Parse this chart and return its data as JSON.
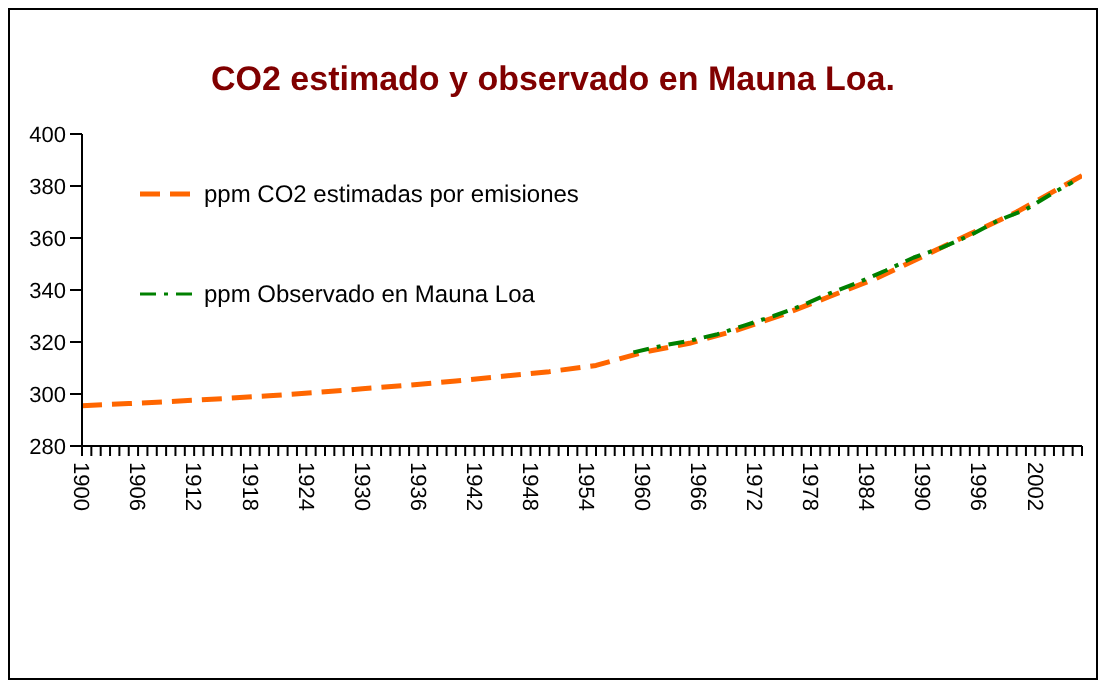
{
  "chart_data": {
    "type": "line",
    "title": "CO2 estimado y observado en Mauna Loa.",
    "xlim": [
      1900,
      2007
    ],
    "ylim": [
      280,
      400
    ],
    "yticks": [
      280,
      300,
      320,
      340,
      360,
      380,
      400
    ],
    "xticks": [
      1900,
      {
        "value": 1901,
        "label": null
      },
      {
        "value": 1902,
        "label": null
      },
      {
        "value": 1903,
        "label": null
      },
      {
        "value": 1904,
        "label": null
      },
      {
        "value": 1905,
        "label": null
      },
      1906,
      {
        "value": 1907,
        "label": null
      },
      {
        "value": 1908,
        "label": null
      },
      {
        "value": 1909,
        "label": null
      },
      {
        "value": 1910,
        "label": null
      },
      {
        "value": 1911,
        "label": null
      },
      1912,
      {
        "value": 1913,
        "label": null
      },
      {
        "value": 1914,
        "label": null
      },
      {
        "value": 1915,
        "label": null
      },
      {
        "value": 1916,
        "label": null
      },
      {
        "value": 1917,
        "label": null
      },
      1918,
      {
        "value": 1919,
        "label": null
      },
      {
        "value": 1920,
        "label": null
      },
      {
        "value": 1921,
        "label": null
      },
      {
        "value": 1922,
        "label": null
      },
      {
        "value": 1923,
        "label": null
      },
      1924,
      {
        "value": 1925,
        "label": null
      },
      {
        "value": 1926,
        "label": null
      },
      {
        "value": 1927,
        "label": null
      },
      {
        "value": 1928,
        "label": null
      },
      {
        "value": 1929,
        "label": null
      },
      1930,
      {
        "value": 1931,
        "label": null
      },
      {
        "value": 1932,
        "label": null
      },
      {
        "value": 1933,
        "label": null
      },
      {
        "value": 1934,
        "label": null
      },
      {
        "value": 1935,
        "label": null
      },
      1936,
      {
        "value": 1937,
        "label": null
      },
      {
        "value": 1938,
        "label": null
      },
      {
        "value": 1939,
        "label": null
      },
      {
        "value": 1940,
        "label": null
      },
      {
        "value": 1941,
        "label": null
      },
      1942,
      {
        "value": 1943,
        "label": null
      },
      {
        "value": 1944,
        "label": null
      },
      {
        "value": 1945,
        "label": null
      },
      {
        "value": 1946,
        "label": null
      },
      {
        "value": 1947,
        "label": null
      },
      1948,
      {
        "value": 1949,
        "label": null
      },
      {
        "value": 1950,
        "label": null
      },
      {
        "value": 1951,
        "label": null
      },
      {
        "value": 1952,
        "label": null
      },
      {
        "value": 1953,
        "label": null
      },
      1954,
      {
        "value": 1955,
        "label": null
      },
      {
        "value": 1956,
        "label": null
      },
      {
        "value": 1957,
        "label": null
      },
      {
        "value": 1958,
        "label": null
      },
      {
        "value": 1959,
        "label": null
      },
      1960,
      {
        "value": 1961,
        "label": null
      },
      {
        "value": 1962,
        "label": null
      },
      {
        "value": 1963,
        "label": null
      },
      {
        "value": 1964,
        "label": null
      },
      {
        "value": 1965,
        "label": null
      },
      1966,
      {
        "value": 1967,
        "label": null
      },
      {
        "value": 1968,
        "label": null
      },
      {
        "value": 1969,
        "label": null
      },
      {
        "value": 1970,
        "label": null
      },
      {
        "value": 1971,
        "label": null
      },
      1972,
      {
        "value": 1973,
        "label": null
      },
      {
        "value": 1974,
        "label": null
      },
      {
        "value": 1975,
        "label": null
      },
      {
        "value": 1976,
        "label": null
      },
      {
        "value": 1977,
        "label": null
      },
      1978,
      {
        "value": 1979,
        "label": null
      },
      {
        "value": 1980,
        "label": null
      },
      {
        "value": 1981,
        "label": null
      },
      {
        "value": 1982,
        "label": null
      },
      {
        "value": 1983,
        "label": null
      },
      1984,
      {
        "value": 1985,
        "label": null
      },
      {
        "value": 1986,
        "label": null
      },
      {
        "value": 1987,
        "label": null
      },
      {
        "value": 1988,
        "label": null
      },
      {
        "value": 1989,
        "label": null
      },
      1990,
      {
        "value": 1991,
        "label": null
      },
      {
        "value": 1992,
        "label": null
      },
      {
        "value": 1993,
        "label": null
      },
      {
        "value": 1994,
        "label": null
      },
      {
        "value": 1995,
        "label": null
      },
      1996,
      {
        "value": 1997,
        "label": null
      },
      {
        "value": 1998,
        "label": null
      },
      {
        "value": 1999,
        "label": null
      },
      {
        "value": 2000,
        "label": null
      },
      {
        "value": 2001,
        "label": null
      },
      2002,
      {
        "value": 2003,
        "label": null
      },
      {
        "value": 2004,
        "label": null
      },
      {
        "value": 2005,
        "label": null
      },
      {
        "value": 2006,
        "label": null
      },
      {
        "value": 2007,
        "label": null
      }
    ],
    "legend": "top left",
    "grid": false,
    "marker": "none",
    "series": [
      {
        "name": "ppm CO2 estimadas por emisiones",
        "color": "#ff6600",
        "line_style": "dashed",
        "x": [
          1900,
          1905,
          1910,
          1915,
          1920,
          1925,
          1930,
          1935,
          1940,
          1945,
          1950,
          1955,
          1960,
          1965,
          1970,
          1975,
          1980,
          1985,
          1990,
          1995,
          2000,
          2005,
          2007
        ],
        "values": [
          295.5,
          296.3,
          297.2,
          298.2,
          299.3,
          300.6,
          302,
          303.4,
          305,
          306.8,
          308.6,
          311,
          316,
          319.5,
          324.5,
          330.5,
          337.5,
          344.5,
          353,
          361.5,
          370,
          380,
          384
        ]
      },
      {
        "name": "ppm Observado en Mauna Loa",
        "color": "#008000",
        "line_style": "dashdot",
        "x": [
          1959,
          1962,
          1965,
          1968,
          1971,
          1974,
          1977,
          1980,
          1983,
          1986,
          1989,
          1992,
          1995,
          1998,
          2001,
          2004,
          2006
        ],
        "values": [
          316,
          318.5,
          320.5,
          323,
          326.5,
          330,
          334,
          338.7,
          342.8,
          347.5,
          352.5,
          356.3,
          361,
          366.7,
          371,
          377.5,
          381.5
        ]
      }
    ]
  }
}
